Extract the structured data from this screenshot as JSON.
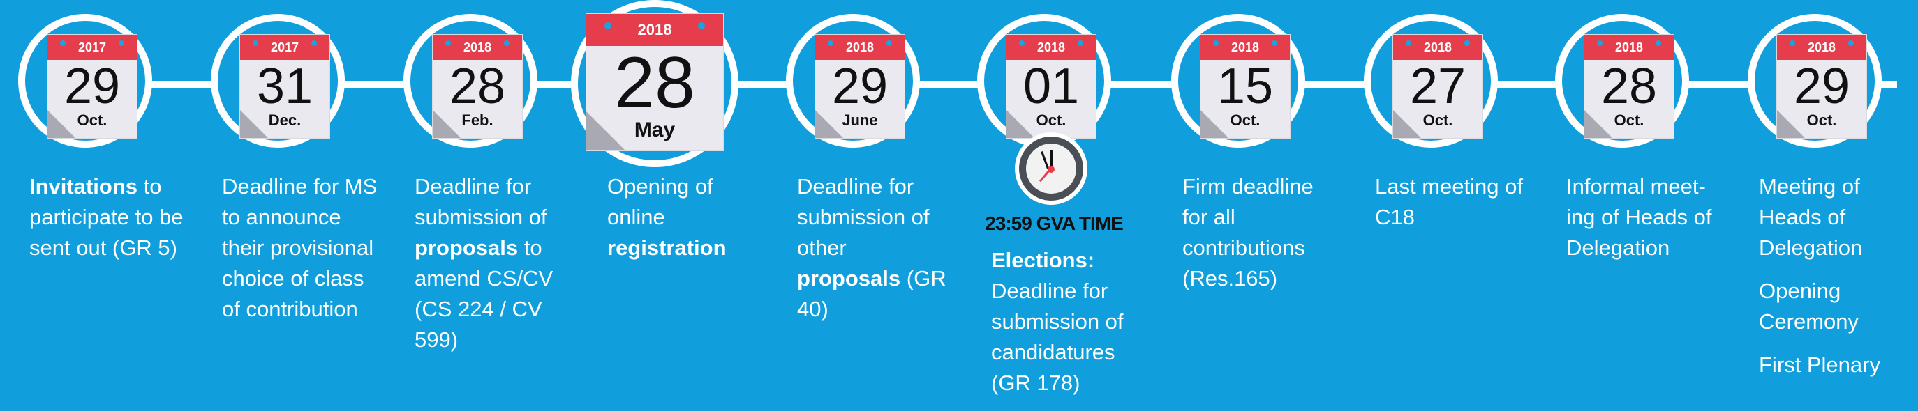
{
  "milestones": [
    {
      "year": "2017",
      "day": "29",
      "month": "Oct.",
      "desc": [
        [
          {
            "t": "Invitations",
            "b": true
          },
          {
            "t": " to participate to be sent out (GR 5)",
            "b": false
          }
        ]
      ]
    },
    {
      "year": "2017",
      "day": "31",
      "month": "Dec.",
      "desc": [
        [
          {
            "t": "Deadline for MS to announce their provisional choice of class of contribution",
            "b": false
          }
        ]
      ]
    },
    {
      "year": "2018",
      "day": "28",
      "month": "Feb.",
      "desc": [
        [
          {
            "t": "Deadline for submission of ",
            "b": false
          },
          {
            "t": "proposals",
            "b": true
          },
          {
            "t": " to amend CS/CV (CS 224 / CV 599)",
            "b": false
          }
        ]
      ]
    },
    {
      "year": "2018",
      "day": "28",
      "month": "May",
      "big": true,
      "desc": [
        [
          {
            "t": "Opening of online ",
            "b": false
          },
          {
            "t": "registration",
            "b": true
          }
        ]
      ]
    },
    {
      "year": "2018",
      "day": "29",
      "month": "June",
      "desc": [
        [
          {
            "t": "Deadline for submission of other ",
            "b": false
          },
          {
            "t": "proposals",
            "b": true
          },
          {
            "t": " (GR 40)",
            "b": false
          }
        ]
      ]
    },
    {
      "year": "2018",
      "day": "01",
      "month": "Oct.",
      "clock_time": "23:59 GVA TIME",
      "desc": [
        [
          {
            "t": "Elections:",
            "b": true
          },
          {
            "t": " Deadline for submission of candidatures (GR 178)",
            "b": false
          }
        ]
      ]
    },
    {
      "year": "2018",
      "day": "15",
      "month": "Oct.",
      "desc": [
        [
          {
            "t": "Firm deadline for all contributions (Res.165)",
            "b": false
          }
        ]
      ]
    },
    {
      "year": "2018",
      "day": "27",
      "month": "Oct.",
      "desc": [
        [
          {
            "t": "Last meeting of C18",
            "b": false
          }
        ]
      ]
    },
    {
      "year": "2018",
      "day": "28",
      "month": "Oct.",
      "desc": [
        [
          {
            "t": "Informal meet-ing of Heads of Delegation",
            "b": false
          }
        ]
      ]
    },
    {
      "year": "2018",
      "day": "29",
      "month": "Oct.",
      "desc": [
        [
          {
            "t": "Meeting of Heads of Delegation",
            "b": false
          }
        ],
        [
          {
            "t": "Opening Ceremony",
            "b": false
          }
        ],
        [
          {
            "t": "First Plenary",
            "b": false
          }
        ]
      ]
    }
  ],
  "colors": {
    "background": "#109fdc",
    "calendar_header": "#e63d4d",
    "text": "#ffffff"
  }
}
